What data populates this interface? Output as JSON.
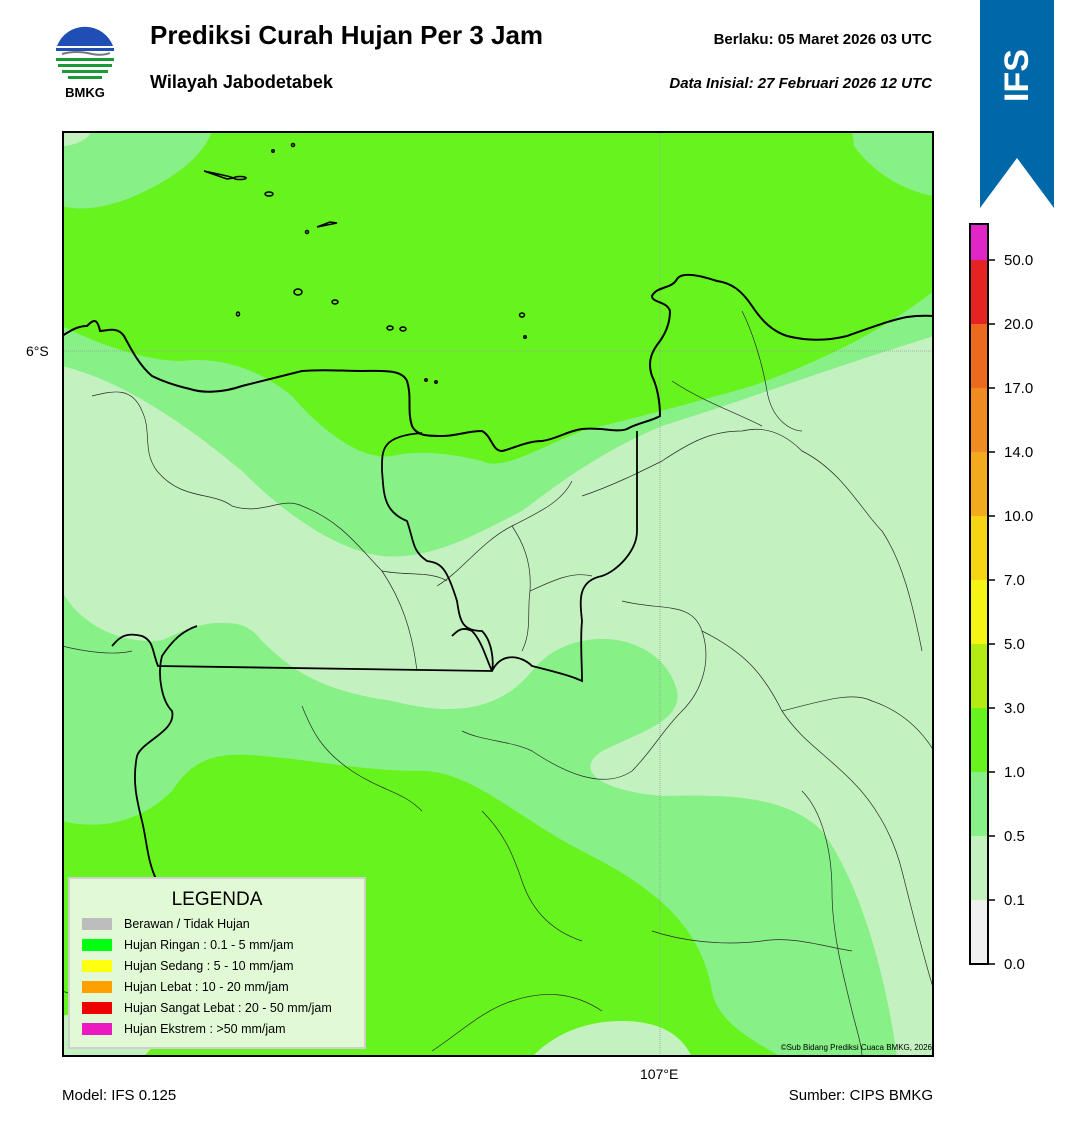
{
  "header": {
    "title": "Prediksi Curah Hujan Per 3 Jam",
    "subtitle": "Wilayah Jabodetabek",
    "valid_label": "Berlaku:  05 Maret 2026 03 UTC",
    "init_label": "Data Inisial:  27 Februari 2026 12 UTC"
  },
  "logo": {
    "text": "BMKG",
    "icon": "bmkg-logo"
  },
  "ribbon": {
    "text": "IFS",
    "color": "#0068a8"
  },
  "axes": {
    "lat_label": "6°S",
    "lon_label": "107°E"
  },
  "footer": {
    "model": "Model: IFS 0.125",
    "source": "Sumber: CIPS BMKG"
  },
  "credit": "©Sub Bidang Prediksi Cuaca BMKG, 2026",
  "legend": {
    "title": "LEGENDA",
    "items": [
      {
        "label": "Berawan / Tidak Hujan",
        "color": "#bdbdbd"
      },
      {
        "label": "Hujan Ringan : 0.1 - 5 mm/jam",
        "color": "#00ff10"
      },
      {
        "label": "Hujan Sedang : 5 - 10 mm/jam",
        "color": "#ffff10"
      },
      {
        "label": "Hujan Lebat : 10 - 20 mm/jam",
        "color": "#ffa000"
      },
      {
        "label": "Hujan Sangat Lebat : 20 - 50 mm/jam",
        "color": "#ec0000"
      },
      {
        "label": "Hujan Ekstrem : >50 mm/jam",
        "color": "#ec18c0"
      }
    ]
  },
  "colorbar": {
    "ticks": [
      "0.0",
      "0.1",
      "0.5",
      "1.0",
      "3.0",
      "5.0",
      "7.0",
      "10.0",
      "14.0",
      "17.0",
      "20.0",
      "50.0"
    ],
    "colors": [
      "#f0f0f0",
      "#c3f2c0",
      "#87f086",
      "#66f31e",
      "#b3ec12",
      "#f5f515",
      "#f5d514",
      "#f3aa1e",
      "#ef8b20",
      "#eb6a1e",
      "#e52323",
      "#e126c8"
    ]
  },
  "map_colors": {
    "light": "#c3f2c0",
    "medium": "#87f086",
    "bright": "#66f31e"
  }
}
